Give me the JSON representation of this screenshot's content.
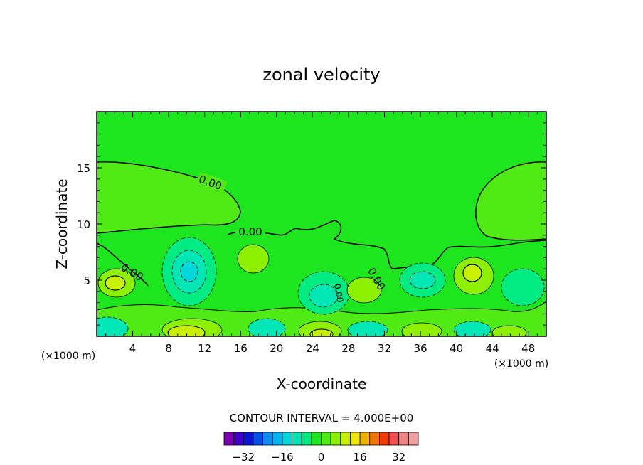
{
  "chart_data": {
    "type": "heatmap",
    "title": "zonal velocity",
    "xlabel": "X-coordinate",
    "ylabel": "Z-coordinate",
    "x_unit": "(×1000 m)",
    "z_unit": "(×1000 m)",
    "xlim": [
      0,
      50
    ],
    "ylim": [
      0,
      20
    ],
    "x_ticks": [
      "4",
      "8",
      "12",
      "16",
      "20",
      "24",
      "28",
      "32",
      "36",
      "40",
      "44",
      "48"
    ],
    "y_ticks": [
      "5",
      "10",
      "15"
    ],
    "contour_interval_label": "CONTOUR INTERVAL = 4.000E+00",
    "contour_labels": [
      "0.00",
      "0.00",
      "0.00",
      "0.00",
      "0.00"
    ],
    "colorbar": {
      "levels": [
        -36,
        -32,
        -28,
        -24,
        -20,
        -16,
        -12,
        -8,
        -4,
        0,
        4,
        8,
        12,
        16,
        20,
        24,
        28,
        32,
        36
      ],
      "tick_labels": [
        "-32",
        "-16",
        "0",
        "16",
        "32"
      ],
      "colors": [
        "#7b00b4",
        "#3c00c8",
        "#0a14d2",
        "#0050e6",
        "#0a8cf0",
        "#00b4f0",
        "#00d8dc",
        "#00e6b4",
        "#00eb82",
        "#1ee61e",
        "#50eb14",
        "#8cf000",
        "#c8f000",
        "#f0e600",
        "#f0b400",
        "#f07800",
        "#f03c00",
        "#f05050",
        "#f08282",
        "#f0a0a0"
      ]
    },
    "features": [
      {
        "kind": "positive_max",
        "x": 2,
        "z": 4.5,
        "value": 4
      },
      {
        "kind": "negative_min",
        "x": 9.5,
        "z": 5.5,
        "value": -8
      },
      {
        "kind": "positive_max",
        "x": 17,
        "z": 6.6,
        "value": 4
      },
      {
        "kind": "negative_min",
        "x": 24,
        "z": 3.6,
        "value": -8
      },
      {
        "kind": "positive_max",
        "x": 29,
        "z": 4.3,
        "value": 4
      },
      {
        "kind": "negative_min",
        "x": 35,
        "z": 5.0,
        "value": -8
      },
      {
        "kind": "positive_max",
        "x": 41.5,
        "z": 5.5,
        "value": 8
      },
      {
        "kind": "negative_min",
        "x": 46.5,
        "z": 4.4,
        "value": -4
      },
      {
        "kind": "negative_min",
        "x": 1.5,
        "z": 0.7,
        "value": -8
      },
      {
        "kind": "positive_max",
        "x": 9,
        "z": 0.6,
        "value": 12
      },
      {
        "kind": "negative_min",
        "x": 18.5,
        "z": 0.7,
        "value": -8
      },
      {
        "kind": "positive_max",
        "x": 24.5,
        "z": 0.6,
        "value": 12
      },
      {
        "kind": "negative_min",
        "x": 30.5,
        "z": 0.6,
        "value": -8
      },
      {
        "kind": "positive_max",
        "x": 36,
        "z": 0.6,
        "value": 12
      },
      {
        "kind": "negative_min",
        "x": 41.5,
        "z": 0.6,
        "value": -8
      },
      {
        "kind": "positive_max",
        "x": 46.5,
        "z": 0.6,
        "value": 8
      }
    ]
  }
}
